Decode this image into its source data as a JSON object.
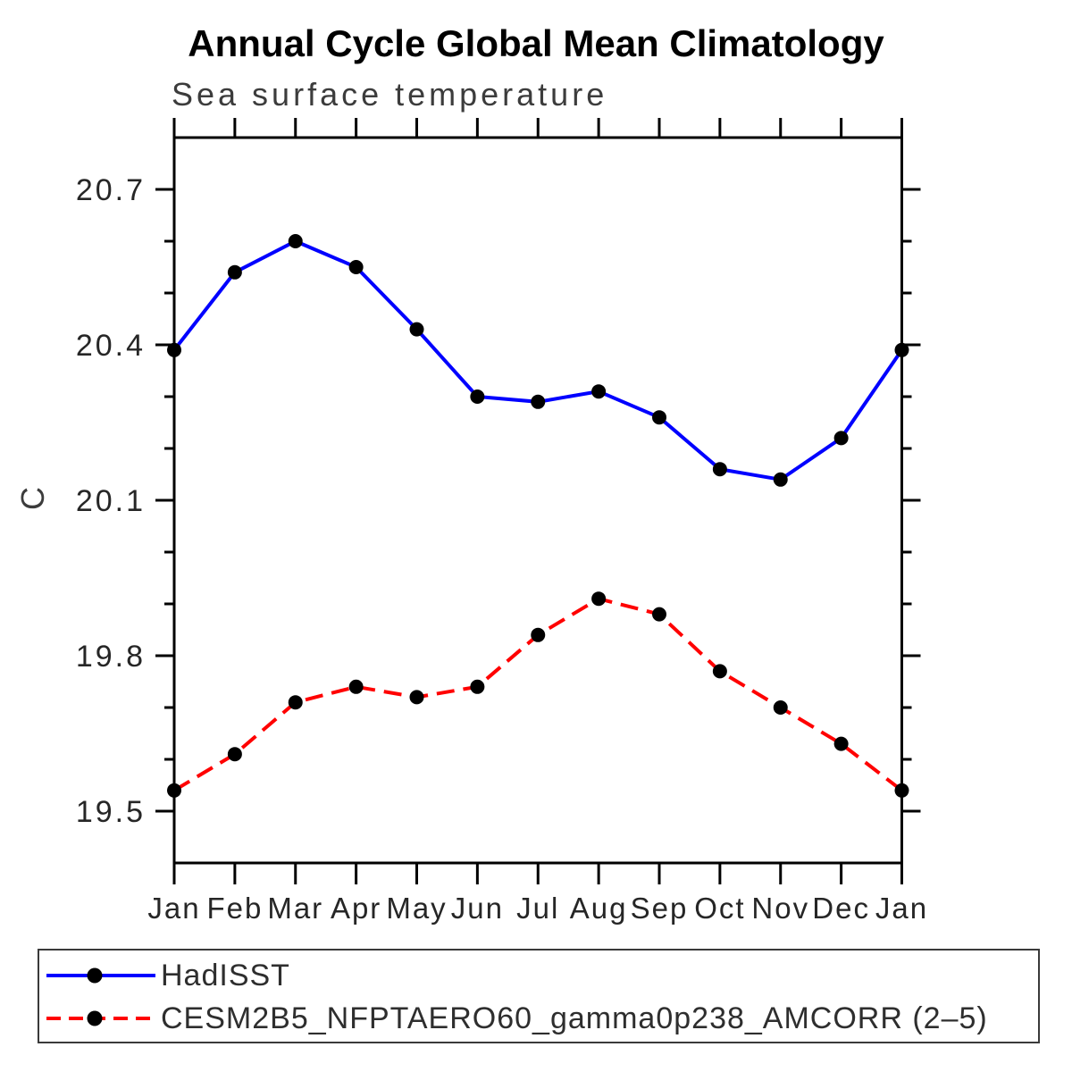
{
  "chart_data": {
    "type": "line",
    "title": "Annual Cycle Global Mean Climatology",
    "subtitle": "Sea surface temperature",
    "ylabel": "C",
    "xlabel": "",
    "categories": [
      "Jan",
      "Feb",
      "Mar",
      "Apr",
      "May",
      "Jun",
      "Jul",
      "Aug",
      "Sep",
      "Oct",
      "Nov",
      "Dec",
      "Jan"
    ],
    "ylim": [
      19.4,
      20.8
    ],
    "yticks_major": [
      19.5,
      19.8,
      20.1,
      20.4,
      20.7
    ],
    "ytick_minor_step": 0.1,
    "grid": false,
    "legend_position": "bottom-outside",
    "marker": "filled-circle",
    "marker_color": "#000000",
    "axis_color": "#000000",
    "series": [
      {
        "name": "HadISST",
        "color": "#0000ff",
        "line_style": "solid",
        "values": [
          20.39,
          20.54,
          20.6,
          20.55,
          20.43,
          20.3,
          20.29,
          20.31,
          20.26,
          20.16,
          20.14,
          20.22,
          20.39
        ]
      },
      {
        "name": "CESM2B5_NFPTAERO60_gamma0p238_AMCORR (2–5)",
        "color": "#ff0000",
        "line_style": "dashed",
        "values": [
          19.54,
          19.61,
          19.71,
          19.74,
          19.72,
          19.74,
          19.84,
          19.91,
          19.88,
          19.77,
          19.7,
          19.63,
          19.54
        ]
      }
    ]
  }
}
